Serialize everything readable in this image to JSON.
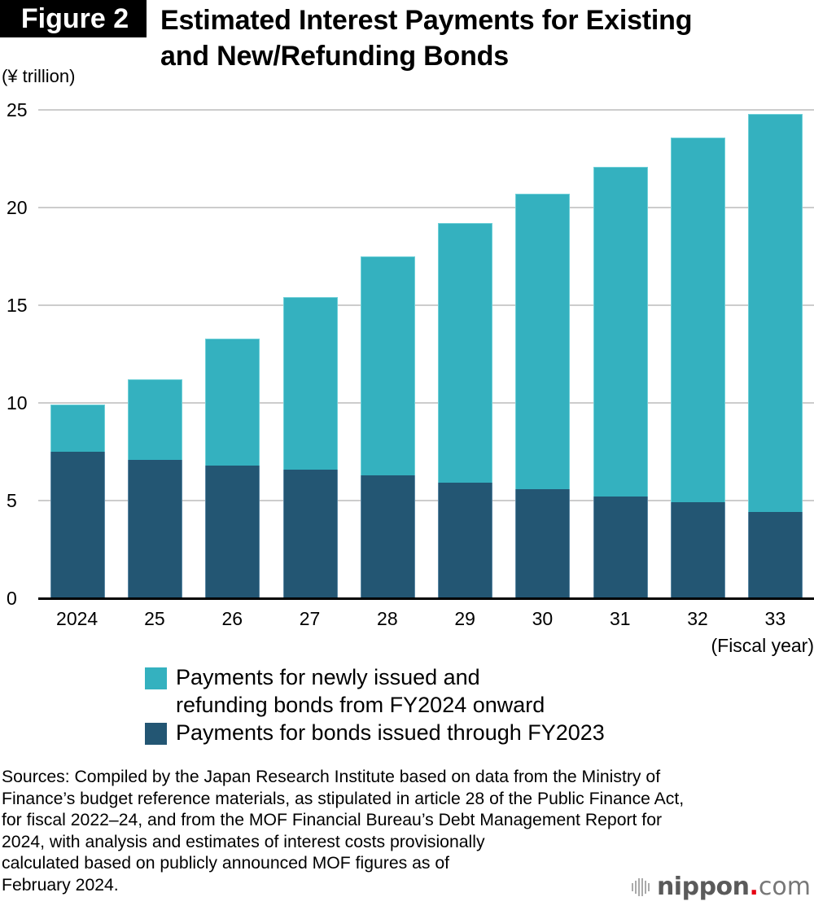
{
  "header": {
    "figure_label": "Figure 2",
    "title_line1": "Estimated Interest Payments for Existing",
    "title_line2": "and New/Refunding Bonds"
  },
  "chart_data": {
    "type": "bar",
    "stacked": true,
    "title": "Estimated Interest Payments for Existing and New/Refunding Bonds",
    "ylabel": "(¥ trillion)",
    "xlabel": "(Fiscal year)",
    "ylim": [
      0,
      25
    ],
    "yticks": [
      0,
      5,
      10,
      15,
      20,
      25
    ],
    "grid": true,
    "legend_position": "bottom",
    "categories": [
      "2024",
      "25",
      "26",
      "27",
      "28",
      "29",
      "30",
      "31",
      "32",
      "33"
    ],
    "series": [
      {
        "name": "Payments for bonds issued through FY2023",
        "color": "#235673",
        "values": [
          7.5,
          7.1,
          6.8,
          6.6,
          6.3,
          5.9,
          5.6,
          5.2,
          4.9,
          4.4
        ]
      },
      {
        "name": "Payments for newly issued and refunding bonds from FY2024 onward",
        "color": "#34b1bf",
        "values": [
          2.4,
          4.1,
          6.5,
          8.8,
          11.2,
          13.3,
          15.1,
          16.9,
          18.7,
          20.4
        ]
      }
    ],
    "totals": [
      9.9,
      11.2,
      13.3,
      15.4,
      17.5,
      19.2,
      20.7,
      22.1,
      23.6,
      24.8
    ]
  },
  "legend": {
    "items": [
      {
        "line1": "Payments for newly issued and",
        "line2": "refunding bonds from FY2024 onward",
        "color": "#34b1bf"
      },
      {
        "line1": "Payments for bonds issued through FY2023",
        "line2": "",
        "color": "#235673"
      }
    ]
  },
  "sources": {
    "lines": [
      "Sources: Compiled by the Japan Research Institute based on data from the Ministry of",
      "Finance’s budget reference materials, as stipulated in article 28 of the Public Finance Act,",
      "for fiscal 2022–24, and from the MOF Financial Bureau’s Debt Management Report for",
      "2024, with analysis and estimates of interest costs provisionally",
      "calculated based on publicly announced MOF figures as of",
      "February 2024."
    ]
  },
  "logo": {
    "name": "nippon",
    "dot": ".",
    "tld": "com",
    "icon": "sound-bars-icon"
  }
}
